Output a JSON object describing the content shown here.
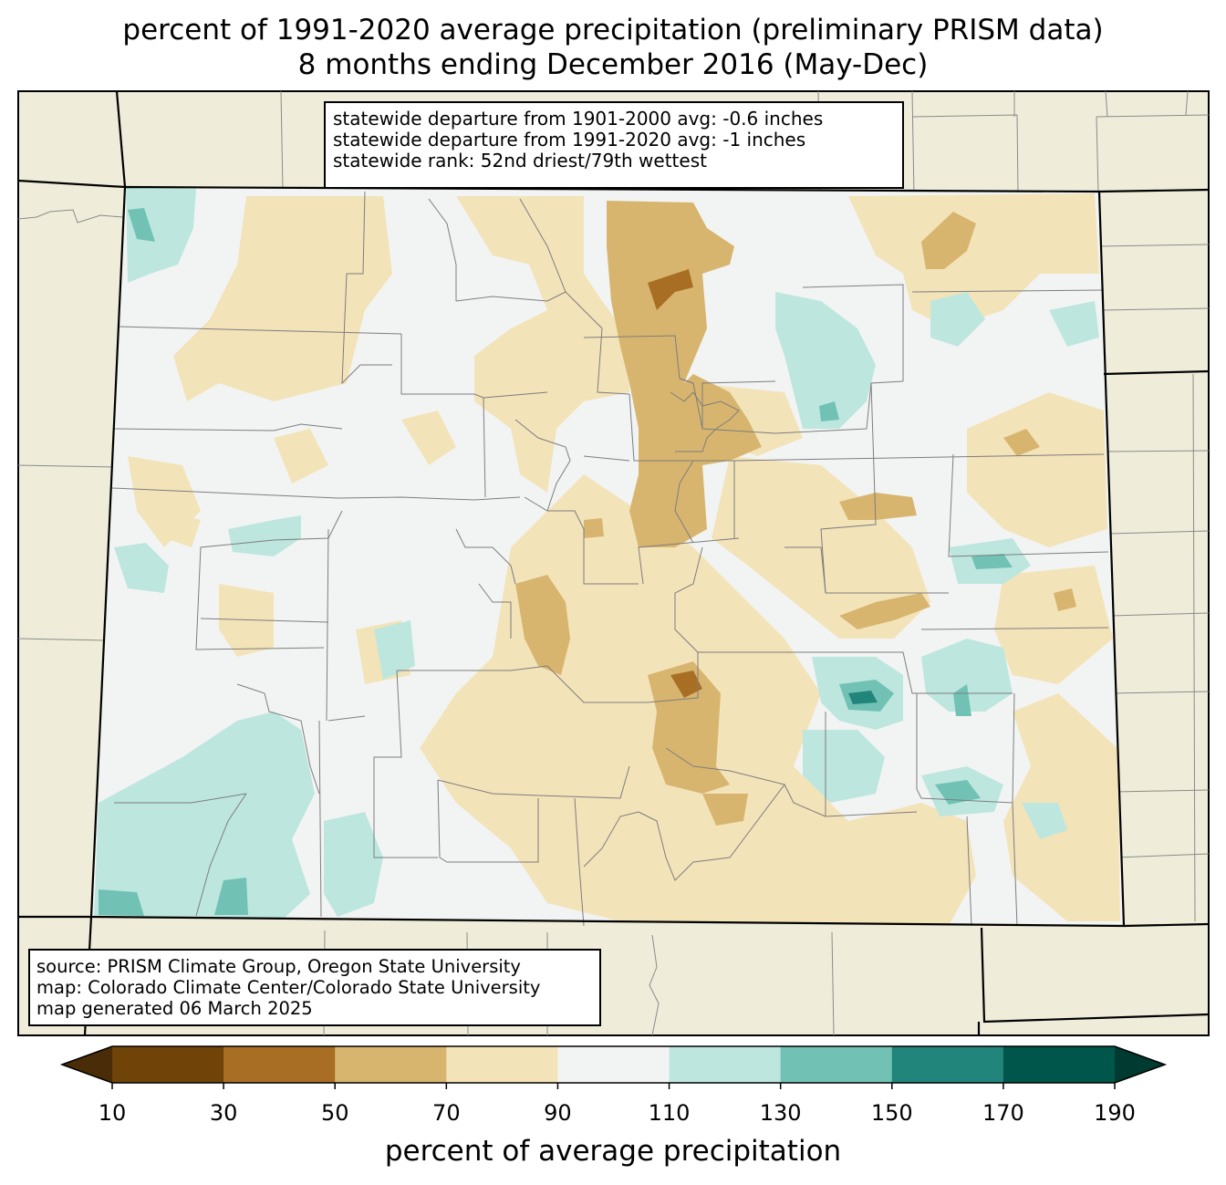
{
  "title": {
    "line1": "percent of 1991-2020 average precipitation (preliminary PRISM data)",
    "line2": "8 months ending December 2016 (May-Dec)"
  },
  "stats": {
    "line1": "statewide departure from 1901-2000 avg: -0.6 inches",
    "line2": "statewide departure from 1991-2020 avg: -1 inches",
    "line3": "statewide rank: 52nd driest/79th wettest"
  },
  "source": {
    "line1": "source: PRISM Climate Group, Oregon State University",
    "line2": "map: Colorado Climate Center/Colorado State University",
    "line3": "map generated 06 March 2025"
  },
  "colorbar": {
    "label": "percent of average precipitation",
    "ticks": [
      "10",
      "30",
      "50",
      "70",
      "90",
      "110",
      "130",
      "150",
      "170",
      "190"
    ],
    "colors": [
      "#704309",
      "#a86f24",
      "#d8b56f",
      "#f3e3b9",
      "#f2f4f3",
      "#bde6df",
      "#71c2b4",
      "#21857b",
      "#00564a"
    ],
    "under_color": "#4a2c09",
    "over_color": "#003a30"
  },
  "colors": {
    "background_land": "#efedda",
    "state_border": "#000000",
    "county_line": "#808080"
  }
}
